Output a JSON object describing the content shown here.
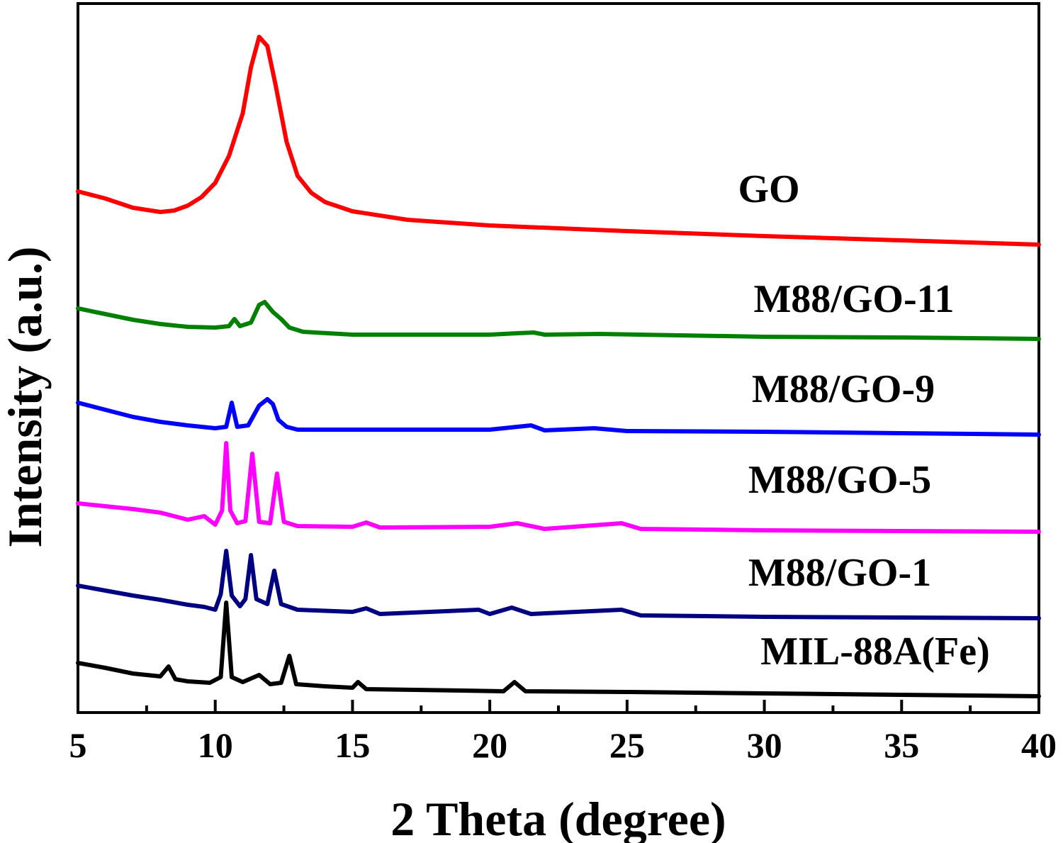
{
  "chart_data": {
    "type": "line",
    "xlabel": "2 Theta (degree)",
    "ylabel": "Intensity (a.u.)",
    "xlim": [
      5,
      40
    ],
    "xticks": [
      5,
      10,
      15,
      20,
      25,
      30,
      35,
      40
    ],
    "yticks": "none",
    "grid": false,
    "legend": "inline labels to the right of each trace",
    "series": [
      {
        "name": "GO",
        "color": "#ff0000",
        "points": [
          [
            5,
            270
          ],
          [
            6,
            280
          ],
          [
            7,
            293
          ],
          [
            8,
            299
          ],
          [
            8.5,
            297
          ],
          [
            9,
            290
          ],
          [
            9.5,
            278
          ],
          [
            10,
            258
          ],
          [
            10.5,
            220
          ],
          [
            11,
            160
          ],
          [
            11.3,
            95
          ],
          [
            11.6,
            52
          ],
          [
            11.9,
            65
          ],
          [
            12.2,
            120
          ],
          [
            12.6,
            200
          ],
          [
            13,
            248
          ],
          [
            13.5,
            272
          ],
          [
            14,
            285
          ],
          [
            15,
            298
          ],
          [
            17,
            310
          ],
          [
            20,
            318
          ],
          [
            25,
            326
          ],
          [
            30,
            333
          ],
          [
            35,
            339
          ],
          [
            40,
            345
          ]
        ]
      },
      {
        "name": "M88/GO-11",
        "color": "#008000",
        "points": [
          [
            5,
            435
          ],
          [
            6,
            443
          ],
          [
            7,
            451
          ],
          [
            8,
            457
          ],
          [
            9,
            461
          ],
          [
            10,
            462
          ],
          [
            10.5,
            460
          ],
          [
            10.7,
            450
          ],
          [
            10.9,
            460
          ],
          [
            11.3,
            455
          ],
          [
            11.6,
            430
          ],
          [
            11.8,
            426
          ],
          [
            12.1,
            440
          ],
          [
            12.4,
            450
          ],
          [
            12.7,
            462
          ],
          [
            13.2,
            468
          ],
          [
            15,
            472
          ],
          [
            20,
            472
          ],
          [
            21,
            470
          ],
          [
            21.6,
            469
          ],
          [
            22,
            472
          ],
          [
            24,
            471
          ],
          [
            30,
            475
          ],
          [
            35,
            476
          ],
          [
            40,
            478
          ]
        ]
      },
      {
        "name": "M88/GO-9",
        "color": "#0000ff",
        "points": [
          [
            5,
            568
          ],
          [
            6,
            578
          ],
          [
            7,
            588
          ],
          [
            8,
            595
          ],
          [
            9,
            600
          ],
          [
            10,
            604
          ],
          [
            10.4,
            602
          ],
          [
            10.6,
            568
          ],
          [
            10.8,
            602
          ],
          [
            11.2,
            600
          ],
          [
            11.6,
            572
          ],
          [
            11.9,
            563
          ],
          [
            12.1,
            570
          ],
          [
            12.3,
            592
          ],
          [
            12.6,
            602
          ],
          [
            13,
            606
          ],
          [
            15,
            606
          ],
          [
            20,
            606
          ],
          [
            20.5,
            604
          ],
          [
            21.5,
            600
          ],
          [
            22,
            607
          ],
          [
            23.8,
            604
          ],
          [
            25,
            608
          ],
          [
            30,
            609
          ],
          [
            35,
            611
          ],
          [
            40,
            613
          ]
        ]
      },
      {
        "name": "M88/GO-5",
        "color": "#ff00ff",
        "points": [
          [
            5,
            710
          ],
          [
            6,
            714
          ],
          [
            7,
            718
          ],
          [
            8,
            723
          ],
          [
            9,
            733
          ],
          [
            9.6,
            728
          ],
          [
            10,
            740
          ],
          [
            10.25,
            720
          ],
          [
            10.4,
            625
          ],
          [
            10.55,
            720
          ],
          [
            10.8,
            738
          ],
          [
            11.1,
            735
          ],
          [
            11.35,
            640
          ],
          [
            11.6,
            736
          ],
          [
            12,
            738
          ],
          [
            12.25,
            668
          ],
          [
            12.5,
            736
          ],
          [
            13,
            742
          ],
          [
            15,
            743
          ],
          [
            15.5,
            737
          ],
          [
            16,
            744
          ],
          [
            20,
            743
          ],
          [
            21,
            738
          ],
          [
            22,
            746
          ],
          [
            24.8,
            738
          ],
          [
            25.5,
            746
          ],
          [
            30,
            748
          ],
          [
            35,
            749
          ],
          [
            40,
            750
          ]
        ]
      },
      {
        "name": "M88/GO-1",
        "color": "#000080",
        "points": [
          [
            5,
            826
          ],
          [
            6,
            833
          ],
          [
            7,
            840
          ],
          [
            8,
            846
          ],
          [
            9,
            853
          ],
          [
            9.6,
            856
          ],
          [
            10,
            860
          ],
          [
            10.2,
            838
          ],
          [
            10.4,
            777
          ],
          [
            10.6,
            840
          ],
          [
            10.9,
            855
          ],
          [
            11.1,
            845
          ],
          [
            11.3,
            783
          ],
          [
            11.5,
            845
          ],
          [
            11.9,
            852
          ],
          [
            12.15,
            805
          ],
          [
            12.4,
            852
          ],
          [
            13,
            860
          ],
          [
            15,
            863
          ],
          [
            15.5,
            858
          ],
          [
            16,
            866
          ],
          [
            19.6,
            860
          ],
          [
            20,
            866
          ],
          [
            20.8,
            857
          ],
          [
            21.5,
            866
          ],
          [
            24.8,
            860
          ],
          [
            25.5,
            868
          ],
          [
            30,
            870
          ],
          [
            35,
            871
          ],
          [
            40,
            872
          ]
        ]
      },
      {
        "name": "MIL-88A(Fe)",
        "color": "#000000",
        "points": [
          [
            5,
            935
          ],
          [
            6,
            942
          ],
          [
            7,
            950
          ],
          [
            8,
            954
          ],
          [
            8.3,
            940
          ],
          [
            8.55,
            958
          ],
          [
            9,
            961
          ],
          [
            9.8,
            963
          ],
          [
            10.2,
            955
          ],
          [
            10.4,
            850
          ],
          [
            10.6,
            955
          ],
          [
            11,
            962
          ],
          [
            11.6,
            952
          ],
          [
            12,
            965
          ],
          [
            12.4,
            963
          ],
          [
            12.7,
            925
          ],
          [
            12.95,
            965
          ],
          [
            14,
            968
          ],
          [
            15,
            970
          ],
          [
            15.2,
            962
          ],
          [
            15.5,
            972
          ],
          [
            19,
            974
          ],
          [
            20.5,
            975
          ],
          [
            20.9,
            962
          ],
          [
            21.3,
            975
          ],
          [
            25,
            976
          ],
          [
            30,
            978
          ],
          [
            35,
            980
          ],
          [
            40,
            982
          ]
        ]
      }
    ]
  }
}
